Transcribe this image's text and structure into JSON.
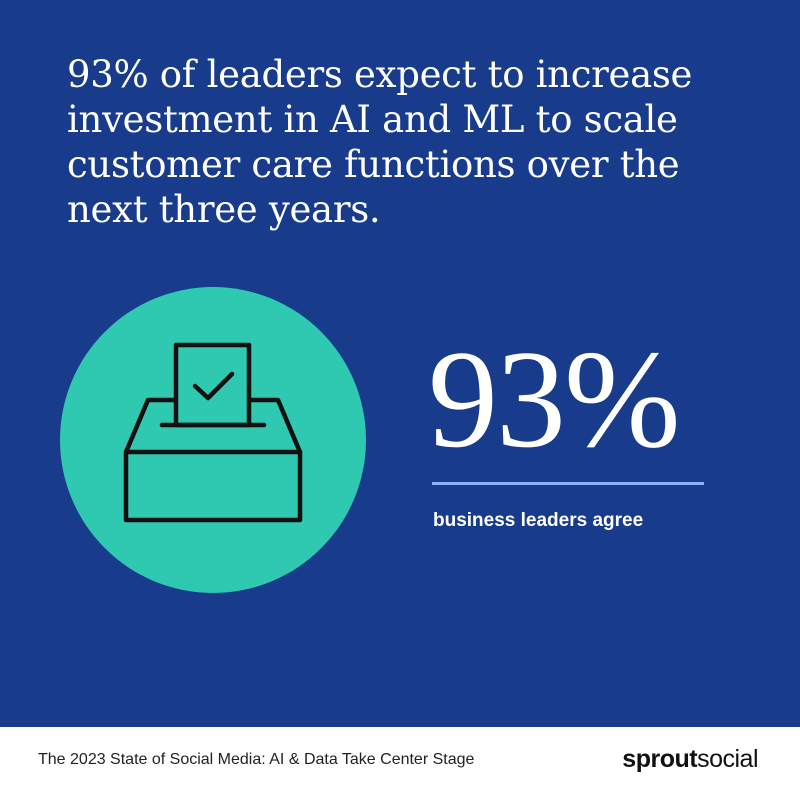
{
  "headline": {
    "lines": [
      "93% of leaders expect to increase",
      "investment in AI and ML to scale",
      "customer care functions over the",
      "next three years."
    ]
  },
  "stat": {
    "value": "93%",
    "caption": "business leaders agree"
  },
  "footer": {
    "title": "The 2023 State of Social Media: AI & Data Take Center Stage",
    "logo": {
      "bold": "sprout",
      "light": "social"
    }
  }
}
